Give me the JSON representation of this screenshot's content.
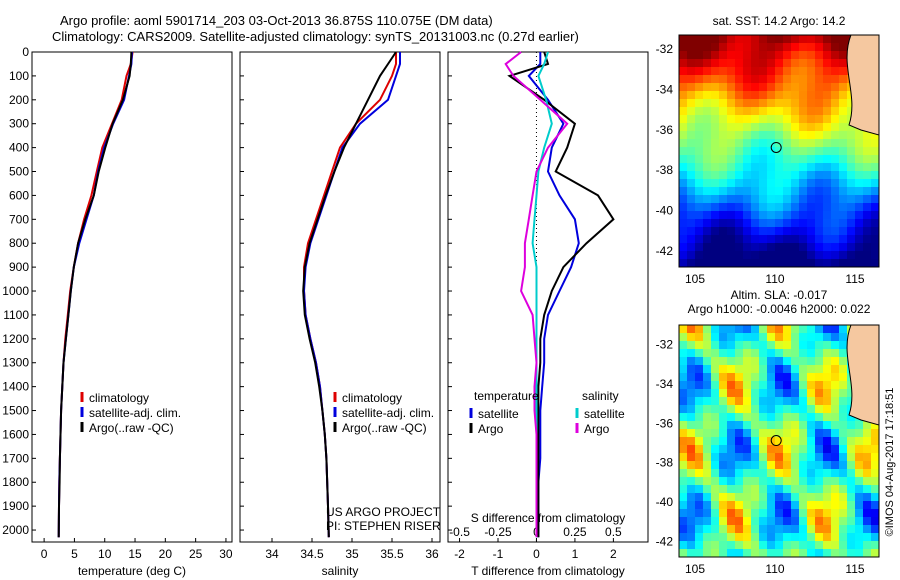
{
  "header": {
    "line1": "Argo profile: aoml 5901714_203 03-Oct-2013 36.875S 110.075E (DM data)",
    "line2": "Climatology: CARS2009. Satellite-adjusted climatology: synTS_20131003.nc (0.27d earlier)"
  },
  "credit": "©IMOS 04-Aug-2017 17:18:51",
  "chart_data": [
    {
      "type": "line",
      "xlabel": "temperature (deg C)",
      "xlim": [
        -2,
        31
      ],
      "xticks": [
        0,
        5,
        10,
        15,
        20,
        25,
        30
      ],
      "ylim": [
        2050,
        0
      ],
      "yticks": [
        0,
        100,
        200,
        300,
        400,
        500,
        600,
        700,
        800,
        900,
        1000,
        1100,
        1200,
        1300,
        1400,
        1500,
        1600,
        1700,
        1800,
        1900,
        2000
      ],
      "legend": [
        "climatology",
        "satellite-adj. clim.",
        "Argo(..raw -QC)"
      ],
      "legend_position": "lower-center",
      "series": [
        {
          "name": "climatology",
          "color": "#dd0000",
          "x": [
            14.6,
            14.3,
            13.6,
            12.8,
            11.2,
            9.6,
            8.7,
            7.8,
            6.6,
            5.6,
            4.9,
            4.3,
            3.9,
            3.5,
            3.2,
            3.0,
            2.8,
            2.7,
            2.6,
            2.5,
            2.45,
            2.4
          ],
          "y": [
            0,
            50,
            100,
            200,
            300,
            400,
            500,
            600,
            700,
            800,
            900,
            1000,
            1100,
            1200,
            1300,
            1400,
            1500,
            1600,
            1700,
            1800,
            1900,
            2030
          ]
        },
        {
          "name": "satellite-adj. clim.",
          "color": "#0000dd",
          "x": [
            14.5,
            14.4,
            14.0,
            13.2,
            11.4,
            9.9,
            8.9,
            8.2,
            7.0,
            5.8,
            4.9,
            4.4,
            4.0,
            3.6,
            3.2,
            3.0,
            2.8,
            2.7,
            2.6,
            2.5,
            2.45,
            2.4
          ],
          "y": [
            0,
            50,
            100,
            200,
            300,
            400,
            500,
            600,
            700,
            800,
            900,
            1000,
            1100,
            1200,
            1300,
            1400,
            1500,
            1600,
            1700,
            1800,
            1900,
            2030
          ]
        },
        {
          "name": "Argo(..raw -QC)",
          "color": "#000000",
          "x": [
            14.4,
            14.3,
            14.1,
            13.0,
            11.3,
            10.1,
            9.0,
            8.2,
            6.8,
            5.6,
            4.9,
            4.4,
            4.0,
            3.6,
            3.2,
            3.0,
            2.8,
            2.7,
            2.6,
            2.55,
            2.45,
            2.4
          ],
          "y": [
            0,
            50,
            100,
            200,
            300,
            400,
            500,
            600,
            700,
            800,
            900,
            1000,
            1100,
            1200,
            1300,
            1400,
            1500,
            1600,
            1700,
            1800,
            1900,
            2030
          ]
        }
      ]
    },
    {
      "type": "line",
      "xlabel": "salinity",
      "xlim": [
        33.6,
        36.1
      ],
      "xticks": [
        34,
        34.5,
        35,
        35.5,
        36
      ],
      "ylim": [
        2050,
        0
      ],
      "legend": [
        "climatology",
        "satellite-adj. clim.",
        "Argo(..raw -QC)"
      ],
      "legend_position": "lower-center",
      "annotations": [
        "US ARGO PROJECT",
        "PI: STEPHEN RISER"
      ],
      "series": [
        {
          "name": "climatology",
          "color": "#dd0000",
          "x": [
            35.55,
            35.55,
            35.5,
            35.35,
            35.05,
            34.85,
            34.75,
            34.65,
            34.55,
            34.45,
            34.4,
            34.4,
            34.42,
            34.48,
            34.55,
            34.6,
            34.63,
            34.66,
            34.68,
            34.69,
            34.7,
            34.71
          ],
          "y": [
            0,
            50,
            100,
            200,
            300,
            400,
            500,
            600,
            700,
            800,
            900,
            1000,
            1100,
            1200,
            1300,
            1400,
            1500,
            1600,
            1700,
            1800,
            1900,
            2030
          ]
        },
        {
          "name": "satellite-adj. clim.",
          "color": "#0000dd",
          "x": [
            35.6,
            35.6,
            35.55,
            35.45,
            35.1,
            34.88,
            34.78,
            34.68,
            34.58,
            34.48,
            34.42,
            34.4,
            34.42,
            34.48,
            34.55,
            34.6,
            34.63,
            34.66,
            34.68,
            34.69,
            34.7,
            34.71
          ],
          "y": [
            0,
            50,
            100,
            200,
            300,
            400,
            500,
            600,
            700,
            800,
            900,
            1000,
            1100,
            1200,
            1300,
            1400,
            1500,
            1600,
            1700,
            1800,
            1900,
            2030
          ]
        },
        {
          "name": "Argo(..raw -QC)",
          "color": "#000000",
          "x": [
            35.55,
            35.45,
            35.35,
            35.2,
            35.05,
            34.9,
            34.78,
            34.67,
            34.57,
            34.47,
            34.41,
            34.39,
            34.41,
            34.47,
            34.54,
            34.59,
            34.63,
            34.66,
            34.68,
            34.69,
            34.7,
            34.71
          ],
          "y": [
            0,
            50,
            100,
            200,
            300,
            400,
            500,
            600,
            700,
            800,
            900,
            1000,
            1100,
            1200,
            1300,
            1400,
            1500,
            1600,
            1700,
            1800,
            1900,
            2030
          ]
        }
      ]
    },
    {
      "type": "line",
      "xlabel": "T difference from climatology",
      "xlabel_top": "S difference from climatology",
      "xlim": [
        -2.3,
        2.9
      ],
      "xticks": [
        -2,
        -1,
        0,
        1,
        2
      ],
      "sticks": [
        "-0.5",
        "-0.25",
        "0",
        "0.25",
        "0.5"
      ],
      "ylim": [
        2050,
        0
      ],
      "legend_titles": [
        "temperature",
        "salinity"
      ],
      "legend": [
        "satellite",
        "Argo",
        "satellite",
        "Argo"
      ],
      "series": [
        {
          "name": "satellite",
          "group": "temperature",
          "color": "#0000dd",
          "x": [
            0.1,
            0.1,
            -0.2,
            0.3,
            0.7,
            0.4,
            0.3,
            0.6,
            1.0,
            1.1,
            0.9,
            0.6,
            0.3,
            0.2,
            0.2,
            0.15,
            0.1,
            0.1,
            0.1,
            0.05,
            0.05,
            0.05
          ],
          "y": [
            0,
            50,
            100,
            200,
            300,
            400,
            500,
            600,
            700,
            800,
            900,
            1000,
            1100,
            1200,
            1300,
            1400,
            1500,
            1600,
            1700,
            1800,
            1900,
            2030
          ]
        },
        {
          "name": "Argo",
          "group": "temperature",
          "color": "#000000",
          "x": [
            0.2,
            0.3,
            -0.7,
            0.2,
            1.0,
            0.8,
            0.5,
            1.6,
            2.0,
            1.3,
            0.7,
            0.4,
            0.2,
            0.1,
            0.1,
            0.05,
            0.05,
            0.05,
            0.05,
            0.05,
            0.05,
            0.05
          ],
          "y": [
            0,
            50,
            100,
            200,
            300,
            400,
            500,
            600,
            700,
            800,
            900,
            1000,
            1100,
            1200,
            1300,
            1400,
            1500,
            1600,
            1700,
            1800,
            1900,
            2030
          ]
        },
        {
          "name": "satellite",
          "group": "salinity",
          "color": "#00cccc",
          "x": [
            0.3,
            0.2,
            0.05,
            0.25,
            0.4,
            0.2,
            0.05,
            0.0,
            -0.05,
            -0.1,
            0.0,
            0.0,
            0.0,
            0.0,
            0.0,
            0.0,
            0.0,
            0.0,
            0.0,
            0.0,
            0.0,
            0.0
          ],
          "y": [
            0,
            50,
            100,
            200,
            300,
            400,
            500,
            600,
            700,
            800,
            900,
            1000,
            1100,
            1200,
            1300,
            1400,
            1500,
            1600,
            1700,
            1800,
            1900,
            2030
          ]
        },
        {
          "name": "Argo",
          "group": "salinity",
          "color": "#dd00dd",
          "x": [
            -0.4,
            -0.8,
            -0.6,
            0.1,
            0.8,
            0.3,
            0.0,
            -0.1,
            -0.2,
            -0.3,
            -0.3,
            -0.4,
            -0.1,
            -0.05,
            0.0,
            -0.05,
            -0.05,
            0.0,
            0.0,
            0.0,
            0.0,
            0.0
          ],
          "y": [
            0,
            50,
            100,
            200,
            300,
            400,
            500,
            600,
            700,
            800,
            900,
            1000,
            1100,
            1200,
            1300,
            1400,
            1500,
            1600,
            1700,
            1800,
            1900,
            2030
          ]
        }
      ]
    },
    {
      "type": "heatmap",
      "title": "sat. SST: 14.2 Argo: 14.2",
      "xlim": [
        104,
        116.5
      ],
      "ylim": [
        -42.8,
        -31.3
      ],
      "xticks": [
        105,
        110,
        115
      ],
      "yticks": [
        -32,
        -34,
        -36,
        -38,
        -40,
        -42
      ],
      "marker": {
        "lon": 110.075,
        "lat": -36.875
      }
    },
    {
      "type": "heatmap",
      "title": "Altim. SLA: -0.017",
      "subtitle": "Argo h1000: -0.0046 h2000: 0.022",
      "xlim": [
        104,
        116.5
      ],
      "ylim": [
        -42.8,
        -31
      ],
      "xticks": [
        105,
        110,
        115
      ],
      "yticks": [
        -32,
        -34,
        -36,
        -38,
        -40,
        -42
      ],
      "marker": {
        "lon": 110.075,
        "lat": -36.875
      }
    }
  ]
}
